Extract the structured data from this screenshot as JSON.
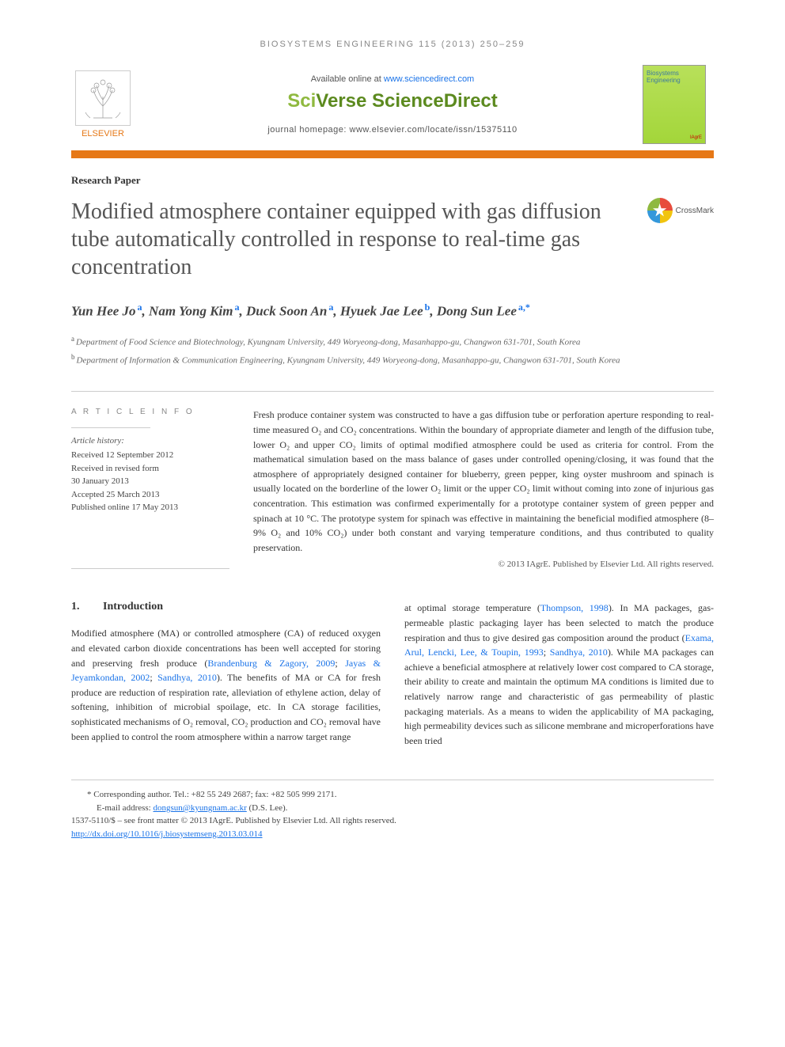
{
  "running_head": "BIOSYSTEMS ENGINEERING 115 (2013) 250–259",
  "header": {
    "available_prefix": "Available online at ",
    "available_link": "www.sciencedirect.com",
    "brand_sci": "Sci",
    "brand_verse": "Verse ",
    "brand_sd": "ScienceDirect",
    "journal_home": "journal homepage: www.elsevier.com/locate/issn/15375110",
    "publisher": "ELSEVIER",
    "cover_title": "Biosystems Engineering",
    "cover_foot": "IAgrE"
  },
  "paper_type": "Research Paper",
  "title": "Modified atmosphere container equipped with gas diffusion tube automatically controlled in response to real-time gas concentration",
  "crossmark": "CrossMark",
  "authors_html": "Yun Hee Jo<sup>a</sup>, Nam Yong Kim<sup>a</sup>, Duck Soon An<sup>a</sup>, Hyuek Jae Lee<sup>b</sup>, Dong Sun Lee<sup>a,*</sup>",
  "authors": [
    {
      "name": "Yun Hee Jo",
      "sup": "a"
    },
    {
      "name": "Nam Yong Kim",
      "sup": "a"
    },
    {
      "name": "Duck Soon An",
      "sup": "a"
    },
    {
      "name": "Hyuek Jae Lee",
      "sup": "b"
    },
    {
      "name": "Dong Sun Lee",
      "sup": "a,*"
    }
  ],
  "affiliations": {
    "a": "Department of Food Science and Biotechnology, Kyungnam University, 449 Woryeong-dong, Masanhappo-gu, Changwon 631-701, South Korea",
    "b": "Department of Information & Communication Engineering, Kyungnam University, 449 Woryeong-dong, Masanhappo-gu, Changwon 631-701, South Korea"
  },
  "article_info": {
    "heading": "A R T I C L E   I N F O",
    "history_label": "Article history:",
    "items": [
      "Received 12 September 2012",
      "Received in revised form",
      "30 January 2013",
      "Accepted 25 March 2013",
      "Published online 17 May 2013"
    ]
  },
  "abstract": "Fresh produce container system was constructed to have a gas diffusion tube or perforation aperture responding to real-time measured O₂ and CO₂ concentrations. Within the boundary of appropriate diameter and length of the diffusion tube, lower O₂ and upper CO₂ limits of optimal modified atmosphere could be used as criteria for control. From the mathematical simulation based on the mass balance of gases under controlled opening/closing, it was found that the atmosphere of appropriately designed container for blueberry, green pepper, king oyster mushroom and spinach is usually located on the borderline of the lower O₂ limit or the upper CO₂ limit without coming into zone of injurious gas concentration. This estimation was confirmed experimentally for a prototype container system of green pepper and spinach at 10 °C. The prototype system for spinach was effective in maintaining the beneficial modified atmosphere (8–9% O₂ and 10% CO₂) under both constant and varying temperature conditions, and thus contributed to quality preservation.",
  "abstract_copyright": "© 2013 IAgrE. Published by Elsevier Ltd. All rights reserved.",
  "section": {
    "num": "1.",
    "title": "Introduction"
  },
  "body_left": "Modified atmosphere (MA) or controlled atmosphere (CA) of reduced oxygen and elevated carbon dioxide concentrations has been well accepted for storing and preserving fresh produce (Brandenburg & Zagory, 2009; Jayas & Jeyamkondan, 2002; Sandhya, 2010). The benefits of MA or CA for fresh produce are reduction of respiration rate, alleviation of ethylene action, delay of softening, inhibition of microbial spoilage, etc. In CA storage facilities, sophisticated mechanisms of O₂ removal, CO₂ production and CO₂ removal have been applied to control the room atmosphere within a narrow target range",
  "body_right": "at optimal storage temperature (Thompson, 1998). In MA packages, gas-permeable plastic packaging layer has been selected to match the produce respiration and thus to give desired gas composition around the product (Exama, Arul, Lencki, Lee, & Toupin, 1993; Sandhya, 2010). While MA packages can achieve a beneficial atmosphere at relatively lower cost compared to CA storage, their ability to create and maintain the optimum MA conditions is limited due to relatively narrow range and characteristic of gas permeability of plastic packaging materials. As a means to widen the applicability of MA packaging, high permeability devices such as silicone membrane and microperforations have been tried",
  "footer": {
    "corr": "* Corresponding author. Tel.: +82 55 249 2687; fax: +82 505 999 2171.",
    "email_label": "E-mail address: ",
    "email": "dongsun@kyungnam.ac.kr",
    "email_suffix": " (D.S. Lee).",
    "issn": "1537-5110/$ – see front matter © 2013 IAgrE. Published by Elsevier Ltd. All rights reserved.",
    "doi": "http://dx.doi.org/10.1016/j.biosystemseng.2013.03.014"
  },
  "colors": {
    "accent": "#e67817",
    "link": "#1a73e8",
    "title": "#555555",
    "cover_bg": "#a3d63a"
  }
}
